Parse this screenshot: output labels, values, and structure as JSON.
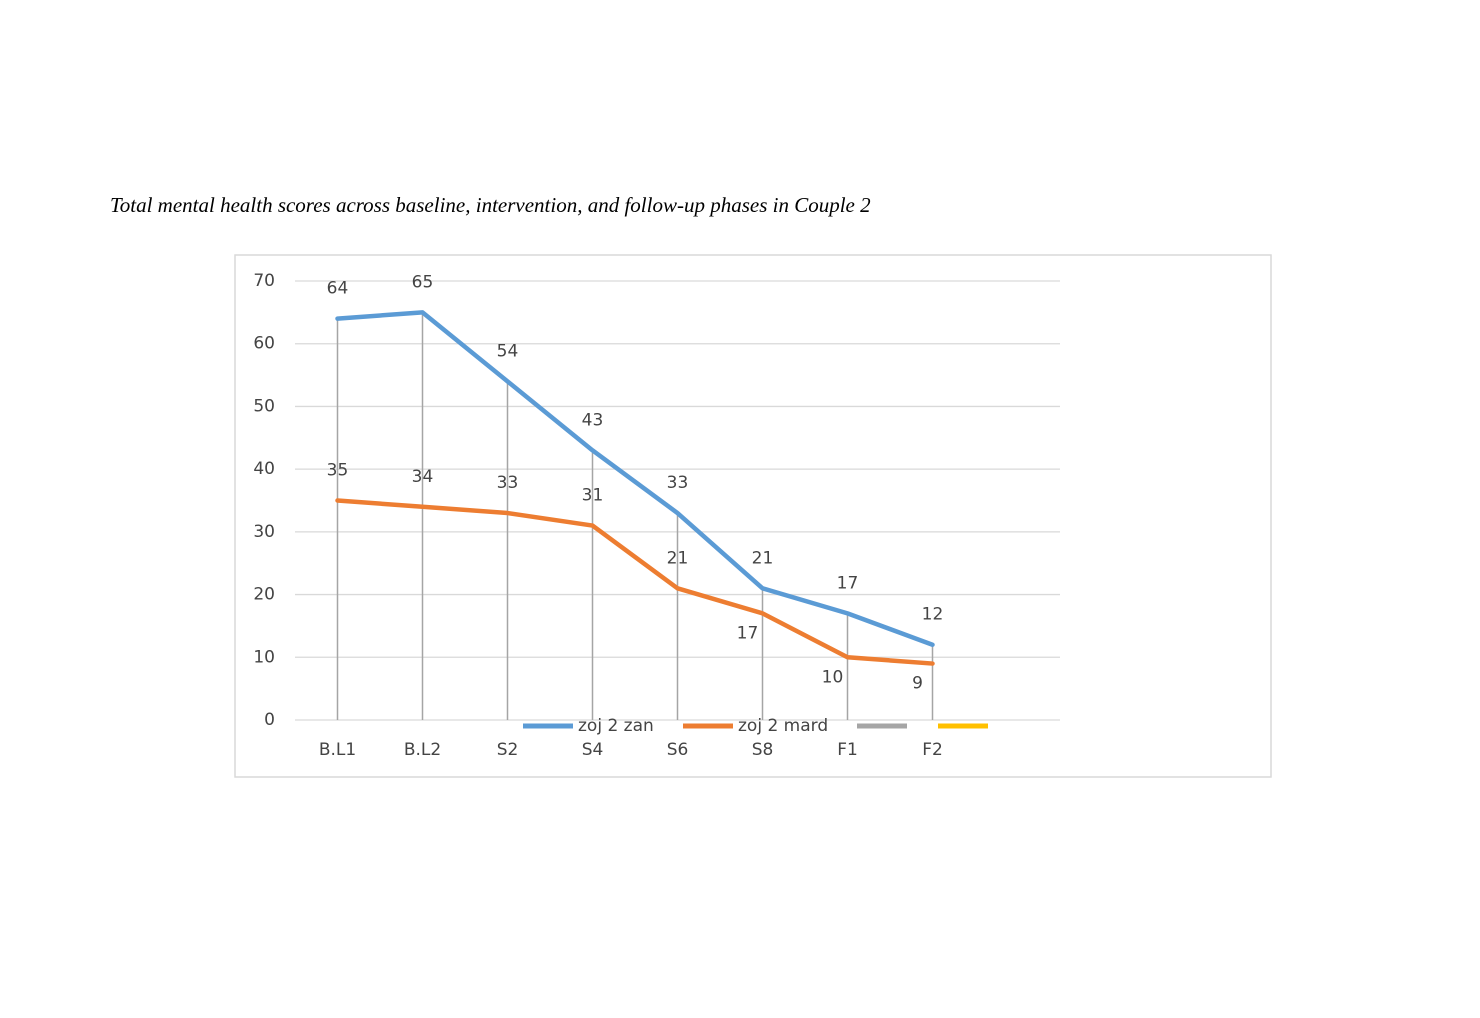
{
  "title": "Total mental health scores across baseline, intervention, and follow-up phases in Couple 2",
  "chart_data": {
    "type": "line",
    "categories": [
      "B.L1",
      "B.L2",
      "S2",
      "S4",
      "S6",
      "S8",
      "F1",
      "F2",
      null
    ],
    "series": [
      {
        "name": "zoj 2 zan",
        "color": "#5b9bd5",
        "values": [
          64,
          65,
          54,
          43,
          33,
          21,
          17,
          12,
          null
        ]
      },
      {
        "name": "zoj 2 mard",
        "color": "#ed7d31",
        "values": [
          35,
          34,
          33,
          31,
          21,
          17,
          10,
          9,
          null
        ]
      }
    ],
    "ylim": [
      0,
      70
    ],
    "yticks": [
      0,
      10,
      20,
      30,
      40,
      50,
      60,
      70
    ],
    "grid": true
  }
}
